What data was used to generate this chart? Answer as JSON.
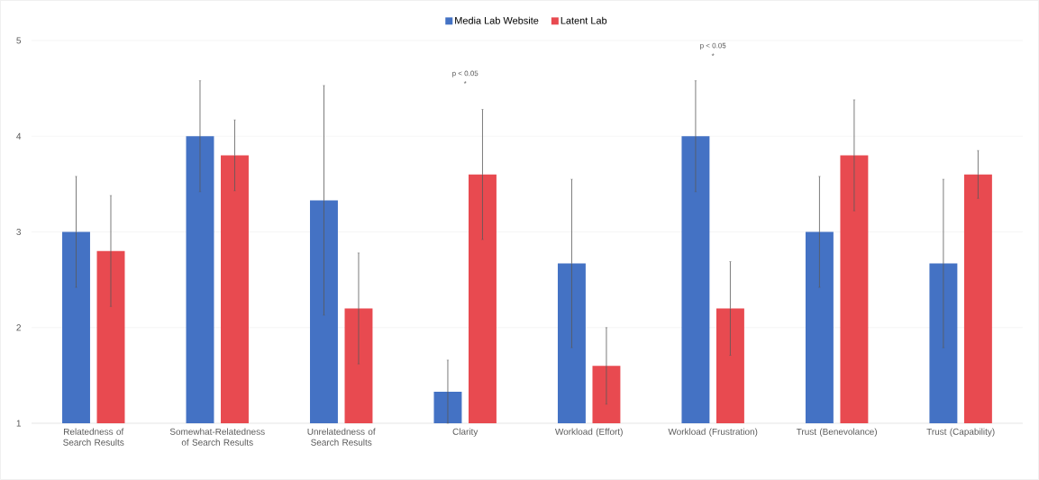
{
  "chart_data": {
    "type": "bar",
    "categories": [
      "Relatedness of Search Results",
      "Somewhat-Relatedness of Search Results",
      "Unrelatedness of Search Results",
      "Clarity",
      "Workload (Effort)",
      "Workload (Frustration)",
      "Trust (Benevolance)",
      "Trust (Capability)"
    ],
    "series": [
      {
        "name": "Media Lab Website",
        "color": "#4472c4",
        "values": [
          3,
          4,
          3.33,
          1.33,
          2.67,
          4,
          3,
          2.67
        ],
        "errors": [
          0.58,
          0.58,
          1.2,
          0.33,
          0.88,
          0.58,
          0.58,
          0.88
        ]
      },
      {
        "name": "Latent Lab",
        "color": "#e84a50",
        "values": [
          2.8,
          3.8,
          2.2,
          3.6,
          1.6,
          2.2,
          3.8,
          3.6
        ],
        "errors": [
          0.58,
          0.37,
          0.58,
          0.68,
          0.4,
          0.49,
          0.58,
          0.25
        ]
      }
    ],
    "ylim": [
      1,
      5
    ],
    "yticks": [
      1,
      2,
      3,
      4,
      5
    ],
    "grid": "y",
    "legend": "top",
    "annotations": [
      "p < 0.05",
      "*",
      "p < 0.05",
      "*"
    ]
  }
}
